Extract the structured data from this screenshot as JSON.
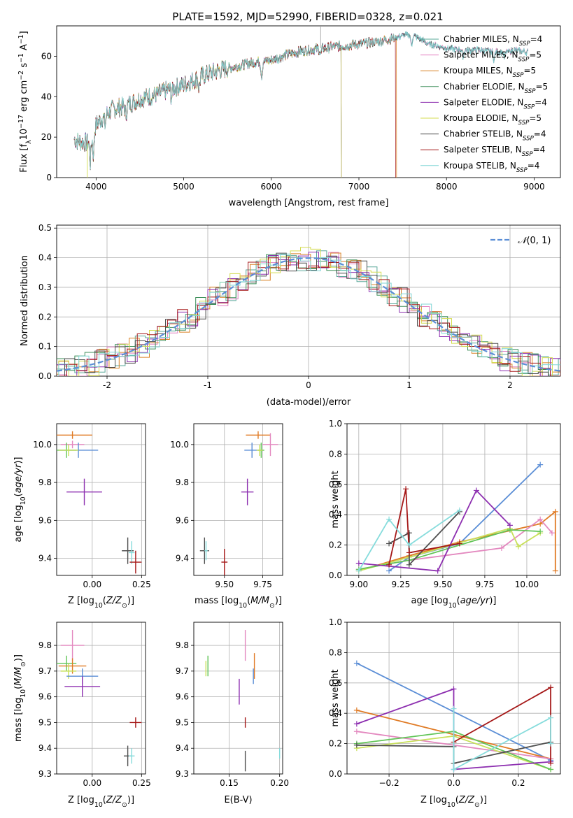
{
  "figure": {
    "title": "PLATE=1592, MJD=52990, FIBERID=0328, z=0.021"
  },
  "colors": {
    "chabrier_miles": "#5aa89a",
    "salpeter_miles": "#e27ec1",
    "kroupa_miles": "#d98226",
    "chabrier_elodie": "#3d8f5a",
    "salpeter_elodie": "#8d2fb0",
    "kroupa_elodie": "#d4dc50",
    "chabrier_stelib": "#4a4a4a",
    "salpeter_stelib": "#a51818",
    "kroupa_stelib": "#7fd6d6",
    "gauss": "#5b8ed6",
    "c_blue": "#5b8ed6",
    "c_orange": "#e07b25",
    "c_pink": "#e388bf",
    "c_green": "#62c558",
    "c_ygreen": "#c8e05a",
    "c_purple": "#8d2fb0",
    "c_red": "#a51818",
    "c_cyan": "#86dcdc",
    "c_dark": "#505050"
  },
  "chart_data": [
    {
      "id": "spectrum",
      "type": "line",
      "title": "PLATE=1592, MJD=52990, FIBERID=0328, z=0.021",
      "xlabel": "wavelength [Angstrom, rest frame]",
      "ylabel": "Flux [f_λ10^-17 erg cm^-2 s^-1 A^-1]",
      "xlim": [
        3550,
        9300
      ],
      "ylim": [
        0,
        75
      ],
      "xticks": [
        4000,
        5000,
        6000,
        7000,
        8000,
        9000
      ],
      "yticks": [
        0,
        20,
        40,
        60
      ],
      "legend": "top-right",
      "series": [
        {
          "name": "Chabrier MILES, N_SSP=4",
          "color_key": "chabrier_miles",
          "x_range": [
            3750,
            8930
          ]
        },
        {
          "name": "Salpeter MILES, N_SSP=5",
          "color_key": "salpeter_miles",
          "x_range": [
            3750,
            8930
          ]
        },
        {
          "name": "Kroupa MILES, N_SSP=5",
          "color_key": "kroupa_miles",
          "x_range": [
            3750,
            7430
          ]
        },
        {
          "name": "Chabrier ELODIE, N_SSP=5",
          "color_key": "chabrier_elodie",
          "x_range": [
            3750,
            6800
          ]
        },
        {
          "name": "Salpeter ELODIE, N_SSP=4",
          "color_key": "salpeter_elodie",
          "x_range": [
            3750,
            6800
          ]
        },
        {
          "name": "Kroupa ELODIE, N_SSP=5",
          "color_key": "kroupa_elodie",
          "x_range": [
            3750,
            6800
          ]
        },
        {
          "name": "Chabrier STELIB, N_SSP=4",
          "color_key": "chabrier_stelib",
          "x_range": [
            3750,
            8930
          ]
        },
        {
          "name": "Salpeter STELIB, N_SSP=4",
          "color_key": "salpeter_stelib",
          "x_range": [
            3750,
            7420
          ]
        },
        {
          "name": "Kroupa STELIB, N_SSP=4",
          "color_key": "kroupa_stelib",
          "x_range": [
            3750,
            8930
          ]
        }
      ],
      "continuum": [
        [
          3750,
          19
        ],
        [
          3800,
          18
        ],
        [
          3900,
          17
        ],
        [
          3950,
          22
        ],
        [
          4000,
          26
        ],
        [
          4100,
          31
        ],
        [
          4200,
          34
        ],
        [
          4300,
          35
        ],
        [
          4400,
          37
        ],
        [
          4500,
          39
        ],
        [
          4600,
          40
        ],
        [
          4700,
          41
        ],
        [
          4800,
          43
        ],
        [
          5000,
          46
        ],
        [
          5200,
          50
        ],
        [
          5400,
          53
        ],
        [
          5600,
          55
        ],
        [
          5800,
          57
        ],
        [
          6000,
          58
        ],
        [
          6200,
          61
        ],
        [
          6400,
          63
        ],
        [
          6600,
          64
        ],
        [
          6800,
          65
        ],
        [
          7000,
          66
        ],
        [
          7200,
          67
        ],
        [
          7400,
          69
        ],
        [
          7600,
          71
        ],
        [
          7800,
          66
        ],
        [
          8000,
          64
        ],
        [
          8200,
          63
        ],
        [
          8400,
          63
        ],
        [
          8600,
          62
        ],
        [
          8800,
          63
        ],
        [
          8930,
          62
        ]
      ]
    },
    {
      "id": "residuals",
      "type": "histogram",
      "xlabel": "(data-model)/error",
      "ylabel": "Normed distribution",
      "xlim": [
        -2.5,
        2.5
      ],
      "ylim": [
        0,
        0.51
      ],
      "xticks": [
        -2,
        -1,
        0,
        1,
        2
      ],
      "yticks": [
        0.0,
        0.1,
        0.2,
        0.3,
        0.4,
        0.5
      ],
      "bin_width": 0.1,
      "legend": "top-right",
      "reference": {
        "name": "𝒩(0,1)",
        "mean": 0,
        "sigma": 1
      }
    },
    {
      "id": "age_vs_Z",
      "type": "scatter",
      "xlabel": "Z [log10(Z/Z⊙)]",
      "ylabel": "age  [log10(age/yr)]",
      "xlim": [
        -0.18,
        0.27
      ],
      "ylim": [
        9.31,
        10.11
      ],
      "xticks": [
        0.0,
        0.25
      ],
      "xticklabels": [
        "0.00",
        "0.25"
      ],
      "yticks": [
        9.4,
        9.6,
        9.8,
        10.0
      ],
      "points": [
        {
          "c": "c_orange",
          "x": -0.1,
          "y": 10.05,
          "xerr": 0.1,
          "yerr": 0.02
        },
        {
          "c": "c_pink",
          "x": -0.1,
          "y": 10.0,
          "xerr": 0.06,
          "yerr": 0.02
        },
        {
          "c": "c_blue",
          "x": -0.07,
          "y": 9.97,
          "xerr": 0.1,
          "yerr": 0.04
        },
        {
          "c": "c_green",
          "x": -0.13,
          "y": 9.97,
          "xerr": 0.05,
          "yerr": 0.04
        },
        {
          "c": "c_ygreen",
          "x": -0.12,
          "y": 9.97,
          "xerr": 0.05,
          "yerr": 0.03
        },
        {
          "c": "c_purple",
          "x": -0.04,
          "y": 9.75,
          "xerr": 0.09,
          "yerr": 0.07
        },
        {
          "c": "c_dark",
          "x": 0.18,
          "y": 9.44,
          "xerr": 0.03,
          "yerr": 0.07
        },
        {
          "c": "c_cyan",
          "x": 0.2,
          "y": 9.43,
          "xerr": 0.015,
          "yerr": 0.06
        },
        {
          "c": "c_red",
          "x": 0.22,
          "y": 9.38,
          "xerr": 0.03,
          "yerr": 0.06
        }
      ]
    },
    {
      "id": "age_vs_mass",
      "type": "scatter",
      "xlabel": "mass [log10(M/M⊙)]",
      "xlim": [
        9.3,
        9.88
      ],
      "ylim": [
        9.31,
        10.11
      ],
      "xticks": [
        9.5,
        9.75
      ],
      "xticklabels": [
        "9.50",
        "9.75"
      ],
      "yticks": [
        9.4,
        9.6,
        9.8,
        10.0
      ],
      "points": [
        {
          "c": "c_orange",
          "x": 9.72,
          "y": 10.05,
          "xerr": 0.08,
          "yerr": 0.02
        },
        {
          "c": "c_pink",
          "x": 9.8,
          "y": 10.0,
          "xerr": 0.05,
          "yerr": 0.06
        },
        {
          "c": "c_blue",
          "x": 9.68,
          "y": 9.97,
          "xerr": 0.05,
          "yerr": 0.04
        },
        {
          "c": "c_green",
          "x": 9.74,
          "y": 9.97,
          "xerr": 0.02,
          "yerr": 0.04
        },
        {
          "c": "c_ygreen",
          "x": 9.73,
          "y": 9.97,
          "xerr": 0.02,
          "yerr": 0.03
        },
        {
          "c": "c_purple",
          "x": 9.65,
          "y": 9.75,
          "xerr": 0.04,
          "yerr": 0.07
        },
        {
          "c": "c_dark",
          "x": 9.37,
          "y": 9.44,
          "xerr": 0.03,
          "yerr": 0.07
        },
        {
          "c": "c_cyan",
          "x": 9.38,
          "y": 9.44,
          "xerr": 0.01,
          "yerr": 0.05
        },
        {
          "c": "c_red",
          "x": 9.5,
          "y": 9.38,
          "xerr": 0.02,
          "yerr": 0.07
        }
      ]
    },
    {
      "id": "massweight_vs_age",
      "type": "line",
      "xlabel": "age  [log10(age/yr)]",
      "ylabel": "mass weight",
      "xlim": [
        8.93,
        10.2
      ],
      "ylim": [
        0,
        1
      ],
      "xticks": [
        9.0,
        9.25,
        9.5,
        9.75,
        10.0
      ],
      "xticklabels": [
        "9.00",
        "9.25",
        "9.50",
        "9.75",
        "10.00"
      ],
      "yticks": [
        0.0,
        0.2,
        0.4,
        0.6,
        0.8,
        1.0
      ],
      "series": [
        {
          "c": "c_blue",
          "points": [
            [
              9.18,
              0.03
            ],
            [
              9.3,
              0.12
            ],
            [
              9.6,
              0.21
            ],
            [
              10.08,
              0.73
            ]
          ]
        },
        {
          "c": "c_orange",
          "points": [
            [
              9.0,
              0.03
            ],
            [
              9.3,
              0.13
            ],
            [
              9.6,
              0.22
            ],
            [
              10.08,
              0.34
            ],
            [
              10.17,
              0.42
            ],
            [
              10.17,
              0.03
            ]
          ]
        },
        {
          "c": "c_pink",
          "points": [
            [
              9.0,
              0.04
            ],
            [
              9.3,
              0.1
            ],
            [
              9.85,
              0.18
            ],
            [
              10.08,
              0.37
            ],
            [
              10.15,
              0.28
            ]
          ]
        },
        {
          "c": "c_ygreen",
          "points": [
            [
              9.0,
              0.03
            ],
            [
              9.3,
              0.12
            ],
            [
              9.9,
              0.31
            ],
            [
              9.95,
              0.19
            ],
            [
              10.08,
              0.28
            ]
          ]
        },
        {
          "c": "c_green",
          "points": [
            [
              9.0,
              0.04
            ],
            [
              9.3,
              0.1
            ],
            [
              9.9,
              0.3
            ],
            [
              10.08,
              0.29
            ]
          ]
        },
        {
          "c": "c_purple",
          "points": [
            [
              9.0,
              0.08
            ],
            [
              9.47,
              0.03
            ],
            [
              9.7,
              0.56
            ],
            [
              9.9,
              0.33
            ]
          ]
        },
        {
          "c": "c_dark",
          "points": [
            [
              9.18,
              0.21
            ],
            [
              9.3,
              0.28
            ],
            [
              9.3,
              0.07
            ],
            [
              9.6,
              0.42
            ]
          ]
        },
        {
          "c": "c_red",
          "points": [
            [
              9.18,
              0.07
            ],
            [
              9.28,
              0.57
            ],
            [
              9.3,
              0.15
            ],
            [
              9.6,
              0.21
            ]
          ]
        },
        {
          "c": "c_cyan",
          "points": [
            [
              9.0,
              0.03
            ],
            [
              9.18,
              0.37
            ],
            [
              9.3,
              0.2
            ],
            [
              9.6,
              0.43
            ]
          ]
        }
      ]
    },
    {
      "id": "mass_vs_Z",
      "type": "scatter",
      "xlabel": "Z [log10(Z/Z⊙)]",
      "ylabel": "mass [log10(M/M⊙)]",
      "xlim": [
        -0.18,
        0.27
      ],
      "ylim": [
        9.3,
        9.89
      ],
      "xticks": [
        0.0,
        0.25
      ],
      "xticklabels": [
        "0.00",
        "0.25"
      ],
      "yticks": [
        9.3,
        9.4,
        9.5,
        9.6,
        9.7,
        9.8
      ],
      "points": [
        {
          "c": "c_pink",
          "x": -0.1,
          "y": 9.8,
          "xerr": 0.06,
          "yerr": 0.06
        },
        {
          "c": "c_green",
          "x": -0.13,
          "y": 9.73,
          "xerr": 0.05,
          "yerr": 0.03
        },
        {
          "c": "c_orange",
          "x": -0.1,
          "y": 9.72,
          "xerr": 0.07,
          "yerr": 0.03
        },
        {
          "c": "c_ygreen",
          "x": -0.12,
          "y": 9.7,
          "xerr": 0.04,
          "yerr": 0.03
        },
        {
          "c": "c_blue",
          "x": -0.05,
          "y": 9.68,
          "xerr": 0.08,
          "yerr": 0.03
        },
        {
          "c": "c_purple",
          "x": -0.05,
          "y": 9.64,
          "xerr": 0.09,
          "yerr": 0.04
        },
        {
          "c": "c_red",
          "x": 0.22,
          "y": 9.5,
          "xerr": 0.03,
          "yerr": 0.02
        },
        {
          "c": "c_dark",
          "x": 0.18,
          "y": 9.37,
          "xerr": 0.02,
          "yerr": 0.04
        },
        {
          "c": "c_cyan",
          "x": 0.2,
          "y": 9.37,
          "xerr": 0.015,
          "yerr": 0.03
        }
      ]
    },
    {
      "id": "mass_vs_EBV",
      "type": "scatter",
      "xlabel": "E(B-V)",
      "xlim": [
        0.115,
        0.203
      ],
      "ylim": [
        9.3,
        9.89
      ],
      "xticks": [
        0.15,
        0.2
      ],
      "xticklabels": [
        "0.15",
        "0.20"
      ],
      "yticks": [
        9.3,
        9.4,
        9.5,
        9.6,
        9.7,
        9.8
      ],
      "points": [
        {
          "c": "c_pink",
          "x": 0.166,
          "y": 9.8,
          "xerr": 0.0,
          "yerr": 0.06
        },
        {
          "c": "c_orange",
          "x": 0.175,
          "y": 9.72,
          "xerr": 0.0,
          "yerr": 0.05
        },
        {
          "c": "c_blue",
          "x": 0.174,
          "y": 9.68,
          "xerr": 0.0,
          "yerr": 0.03
        },
        {
          "c": "c_green",
          "x": 0.129,
          "y": 9.72,
          "xerr": 0.0,
          "yerr": 0.04
        },
        {
          "c": "c_ygreen",
          "x": 0.127,
          "y": 9.71,
          "xerr": 0.0,
          "yerr": 0.03
        },
        {
          "c": "c_purple",
          "x": 0.16,
          "y": 9.62,
          "xerr": 0.0,
          "yerr": 0.05
        },
        {
          "c": "c_red",
          "x": 0.166,
          "y": 9.5,
          "xerr": 0.0,
          "yerr": 0.02
        },
        {
          "c": "c_dark",
          "x": 0.166,
          "y": 9.35,
          "xerr": 0.0,
          "yerr": 0.04
        },
        {
          "c": "c_cyan",
          "x": 0.2,
          "y": 9.38,
          "xerr": 0.0,
          "yerr": 0.02
        }
      ]
    },
    {
      "id": "massweight_vs_Z",
      "type": "line",
      "xlabel": "Z [log10(Z/Z⊙)]",
      "ylabel": "mass weight",
      "xlim": [
        -0.33,
        0.33
      ],
      "ylim": [
        0,
        1
      ],
      "xticks": [
        -0.2,
        0.0,
        0.2
      ],
      "xticklabels": [
        "−0.2",
        "0.0",
        "0.2"
      ],
      "yticks": [
        0.0,
        0.2,
        0.4,
        0.6,
        0.8,
        1.0
      ],
      "series": [
        {
          "c": "c_blue",
          "points": [
            [
              -0.3,
              0.73
            ],
            [
              0.3,
              0.09
            ]
          ]
        },
        {
          "c": "c_orange",
          "points": [
            [
              -0.3,
              0.42
            ],
            [
              0.3,
              0.1
            ]
          ]
        },
        {
          "c": "c_pink",
          "points": [
            [
              -0.3,
              0.28
            ],
            [
              0.3,
              0.1
            ]
          ]
        },
        {
          "c": "c_ygreen",
          "points": [
            [
              -0.3,
              0.17
            ],
            [
              0.0,
              0.25
            ],
            [
              0.3,
              0.03
            ]
          ]
        },
        {
          "c": "c_green",
          "points": [
            [
              -0.3,
              0.2
            ],
            [
              0.0,
              0.28
            ],
            [
              0.3,
              0.03
            ]
          ]
        },
        {
          "c": "c_purple",
          "points": [
            [
              -0.3,
              0.33
            ],
            [
              0.0,
              0.56
            ],
            [
              0.0,
              0.03
            ],
            [
              0.3,
              0.08
            ]
          ]
        },
        {
          "c": "c_dark",
          "points": [
            [
              -0.3,
              0.19
            ],
            [
              0.0,
              0.18
            ],
            [
              0.0,
              0.07
            ],
            [
              0.3,
              0.21
            ]
          ]
        },
        {
          "c": "c_red",
          "points": [
            [
              0.0,
              0.21
            ],
            [
              0.3,
              0.57
            ],
            [
              0.3,
              0.07
            ]
          ]
        },
        {
          "c": "c_cyan",
          "points": [
            [
              0.0,
              0.43
            ],
            [
              0.0,
              0.03
            ],
            [
              0.3,
              0.37
            ],
            [
              0.3,
              0.2
            ]
          ]
        }
      ]
    }
  ]
}
